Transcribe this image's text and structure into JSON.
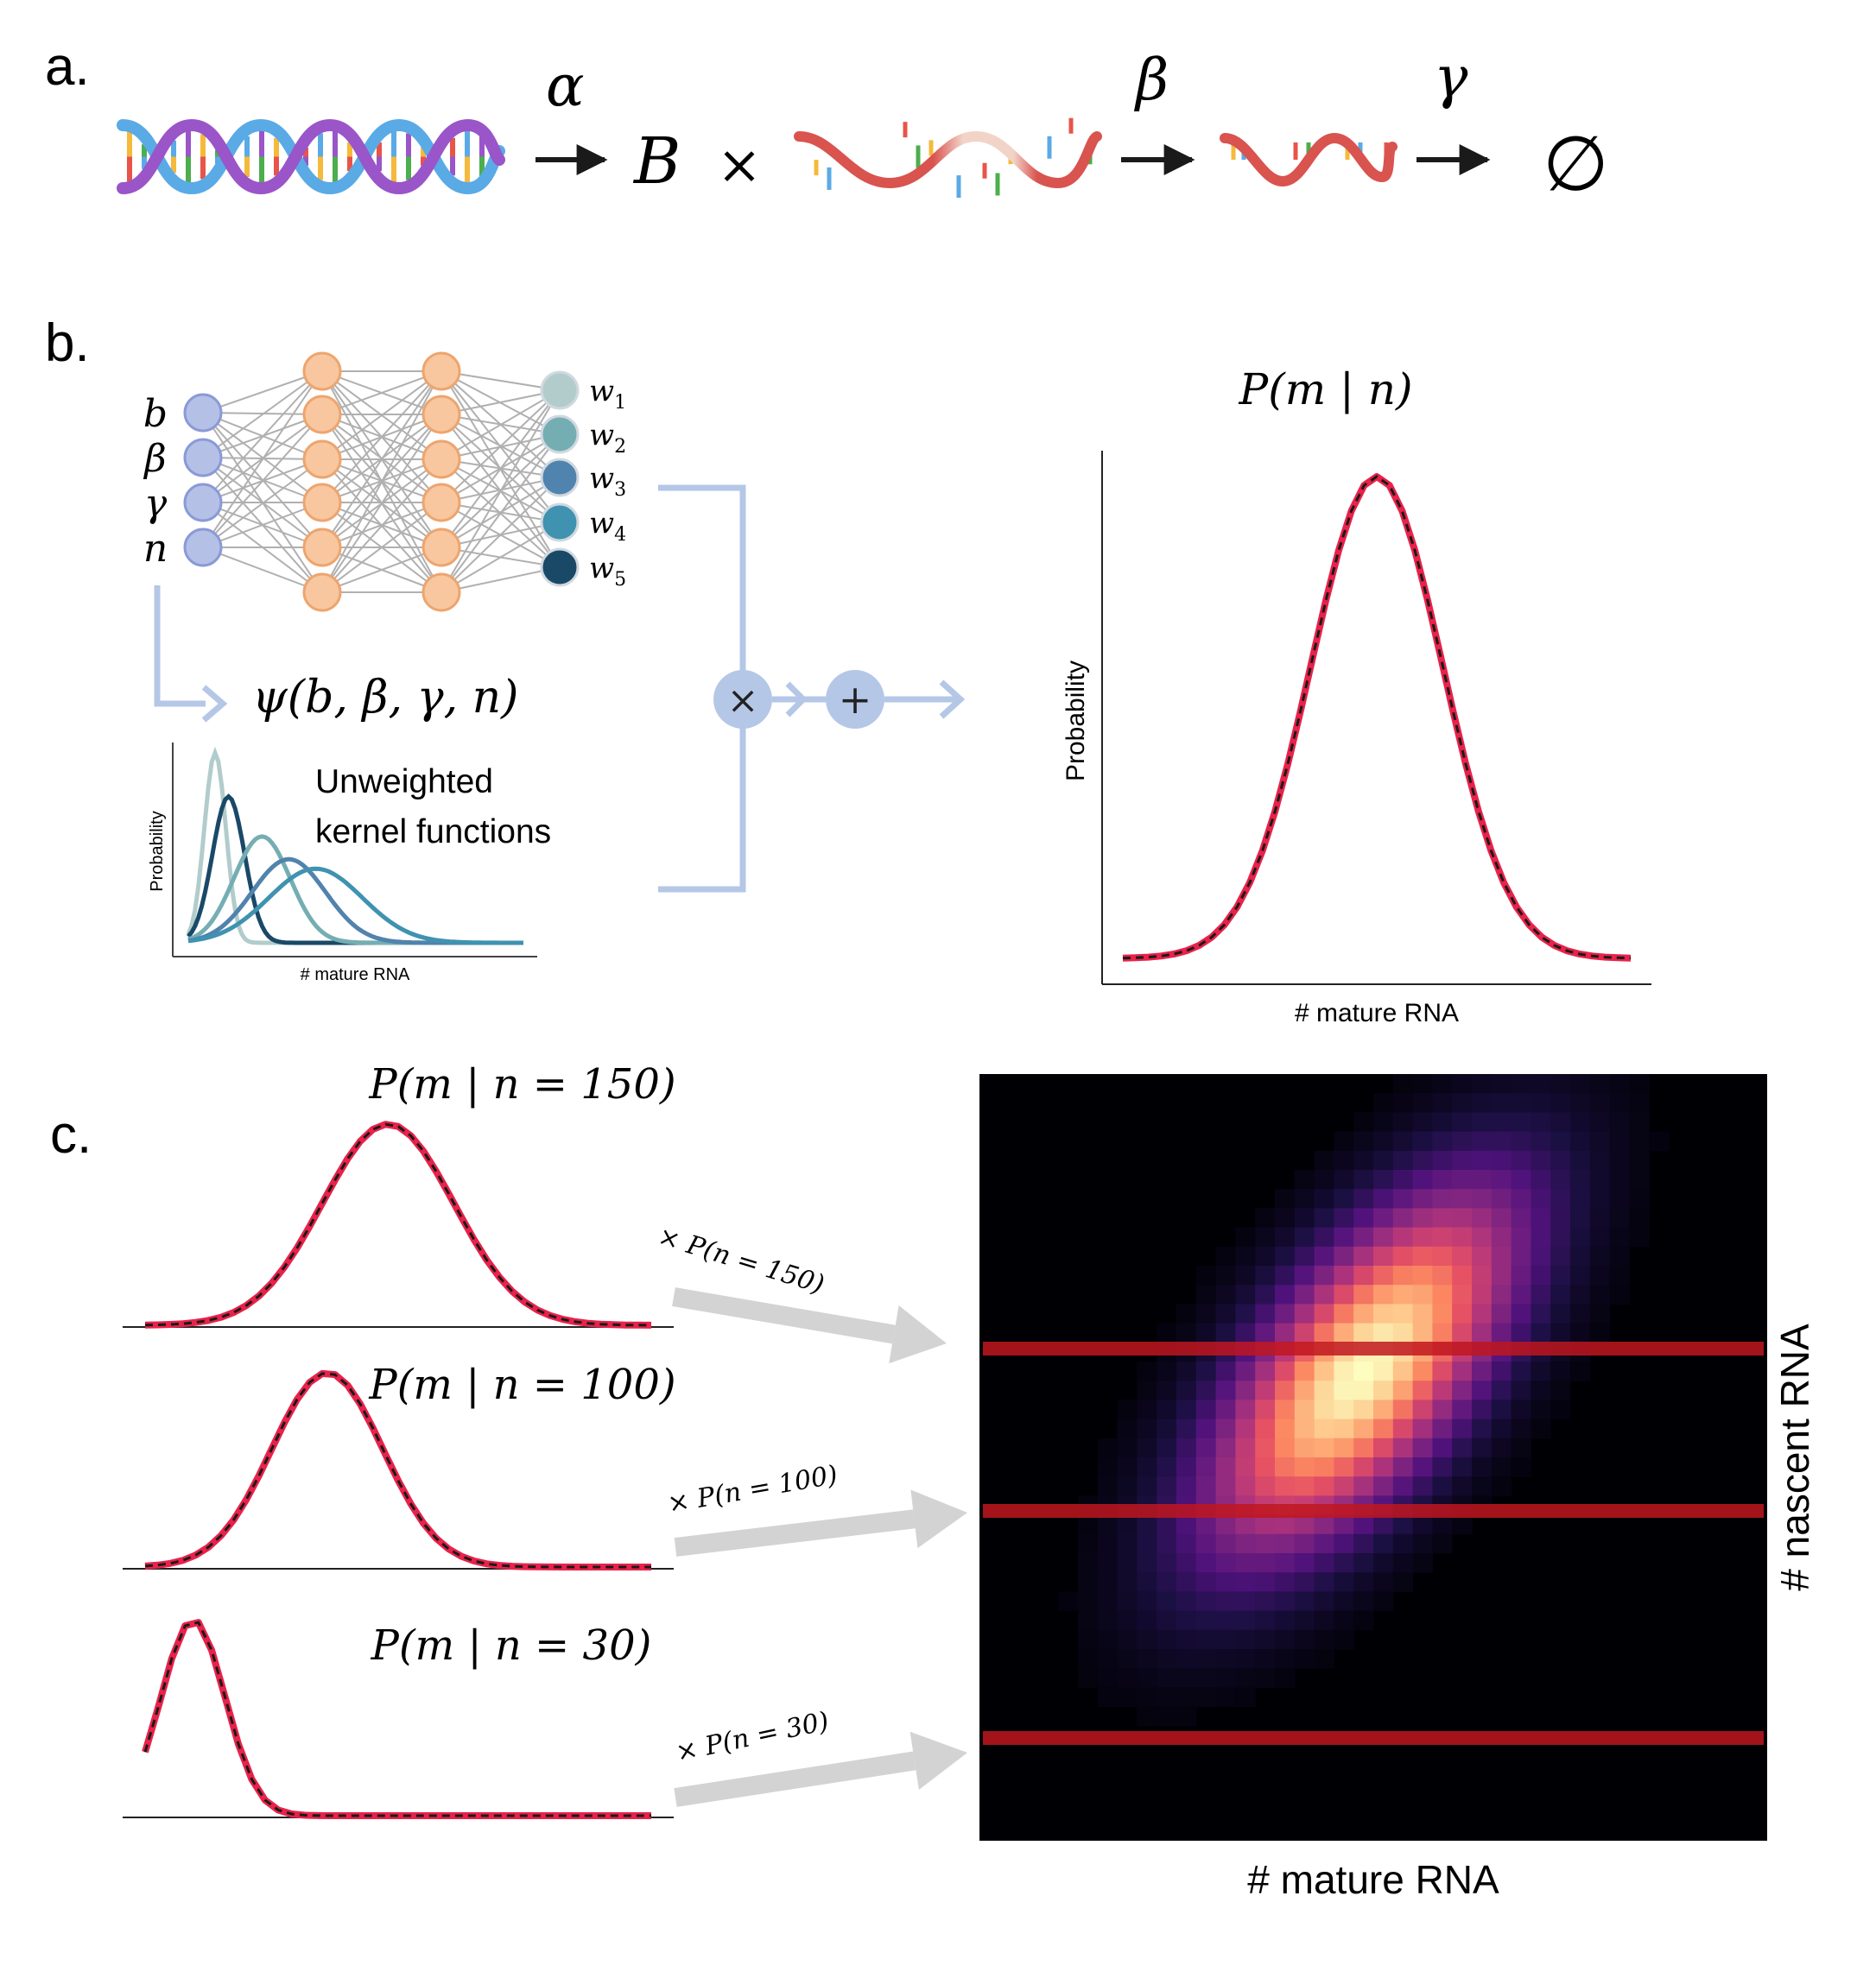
{
  "panels": {
    "a": {
      "label": "a.",
      "rates": {
        "alpha": "α",
        "beta": "β",
        "gamma": "γ"
      },
      "burst_symbol": "B",
      "times_symbol": "×",
      "empty_set": "∅"
    },
    "b": {
      "label": "b.",
      "inputs": [
        "b",
        "β",
        "γ",
        "n"
      ],
      "outputs": [
        {
          "base": "w",
          "sub": "1",
          "color": "#b2cccc"
        },
        {
          "base": "w",
          "sub": "2",
          "color": "#74aeb3"
        },
        {
          "base": "w",
          "sub": "3",
          "color": "#5083ad"
        },
        {
          "base": "w",
          "sub": "4",
          "color": "#3f92b0"
        },
        {
          "base": "w",
          "sub": "5",
          "color": "#1a4968"
        }
      ],
      "psi_label": "ψ(b, β, γ, n)",
      "kernel_caption_line1": "Unweighted",
      "kernel_caption_line2": "kernel functions",
      "kernel_ylabel": "Probability",
      "kernel_xlabel": "# mature RNA",
      "multiply_symbol": "×",
      "sum_symbol": "+",
      "result_title": "P(m | n)",
      "result_ylabel": "Probability",
      "result_xlabel": "# mature RNA"
    },
    "c": {
      "label": "c.",
      "conditionals": [
        {
          "title": "P(m | n = 150)",
          "arrow_label": "× P(n = 150)"
        },
        {
          "title": "P(m | n = 100)",
          "arrow_label": "× P(n = 100)"
        },
        {
          "title": "P(m | n = 30)",
          "arrow_label": "× P(n = 30)"
        }
      ],
      "heatmap_xlabel": "# mature RNA",
      "heatmap_ylabel": "# nascent RNA"
    }
  },
  "colors": {
    "curve_red": "#e8224a",
    "curve_black": "#1a1a1a",
    "connector_blue": "#b4c7e7",
    "input_node": "#b4c0e6",
    "hidden_node": "#f8c7a0",
    "highlight_band": "#c0161e"
  },
  "chart_data": [
    {
      "type": "line",
      "name": "kernel_functions",
      "series": [
        {
          "mean": 4,
          "sd": 1.6,
          "color": "#b2cccc"
        },
        {
          "mean": 6,
          "sd": 2.4,
          "color": "#1a4968"
        },
        {
          "mean": 11,
          "sd": 4.2,
          "color": "#74aeb3"
        },
        {
          "mean": 15,
          "sd": 5.5,
          "color": "#5083ad"
        },
        {
          "mean": 19,
          "sd": 7.0,
          "color": "#3f92b0"
        }
      ],
      "xlim": [
        0,
        50
      ],
      "xlabel": "# mature RNA",
      "ylabel": "Probability"
    },
    {
      "type": "line",
      "name": "P(m | n)",
      "mean": 50,
      "sd": 13,
      "xlim": [
        0,
        100
      ],
      "xlabel": "# mature RNA",
      "ylabel": "Probability"
    },
    {
      "type": "line",
      "name": "conditionals",
      "xlim": [
        0,
        100
      ],
      "series": [
        {
          "n": 150,
          "mean": 48,
          "sd": 13
        },
        {
          "n": 100,
          "mean": 36,
          "sd": 11
        },
        {
          "n": 30,
          "mean": 14,
          "sd": 6
        }
      ]
    },
    {
      "type": "heatmap",
      "name": "joint_distribution",
      "cols": 40,
      "rows": 40,
      "center": {
        "m": 19,
        "n": 24
      },
      "highlight_rows": [
        150,
        100,
        30
      ],
      "xlabel": "# mature RNA",
      "ylabel": "# nascent RNA"
    }
  ]
}
